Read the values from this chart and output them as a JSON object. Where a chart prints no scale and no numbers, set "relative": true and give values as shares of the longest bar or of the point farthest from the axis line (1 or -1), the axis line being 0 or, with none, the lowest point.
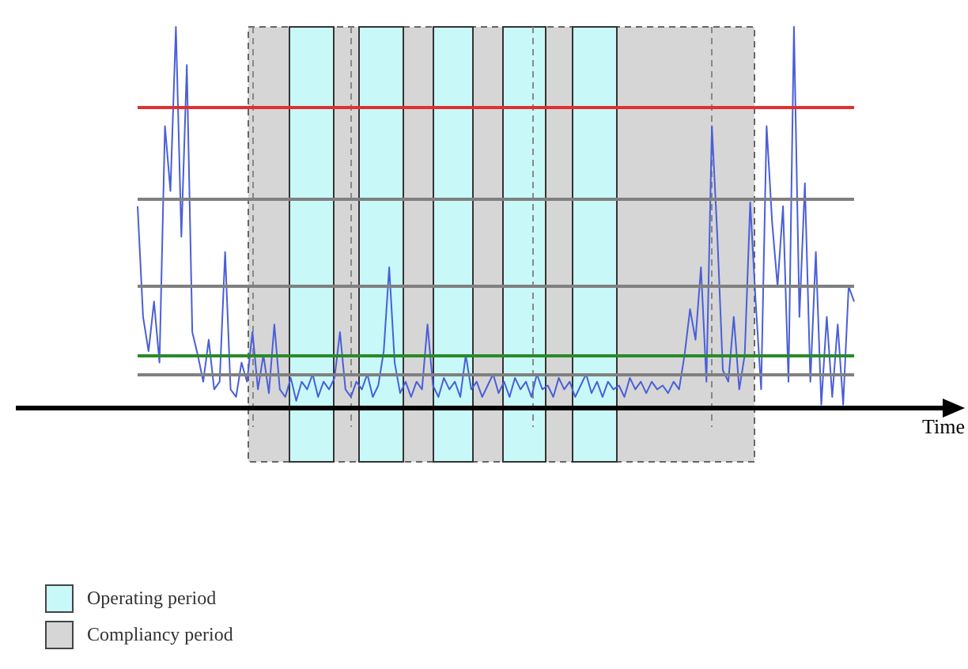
{
  "chart_data": {
    "type": "line",
    "relative": true,
    "xlabel": "Time",
    "marker": "none",
    "line_style": "solid",
    "annotations": [
      "Operating period",
      "Compliancy period"
    ],
    "categories": [
      null,
      null,
      null,
      null,
      null,
      null,
      null,
      null,
      null,
      null,
      null,
      null,
      null,
      null,
      null,
      null,
      null,
      null,
      null,
      null,
      null,
      null,
      null,
      null,
      null,
      null,
      null,
      null,
      null,
      null,
      null,
      null,
      null,
      null,
      null,
      null,
      null,
      null,
      null,
      null,
      null,
      null,
      null,
      null,
      null,
      null,
      null,
      null,
      null,
      null,
      null,
      null,
      null,
      null,
      null,
      null,
      null,
      null,
      null,
      null,
      null,
      null,
      null,
      null,
      null,
      null,
      null,
      null,
      null,
      null,
      null,
      null,
      null,
      null,
      null,
      null,
      null,
      null,
      null,
      null,
      null,
      null,
      null,
      null,
      null,
      null,
      null,
      null,
      null,
      null,
      null,
      null,
      null,
      null,
      null,
      null,
      null,
      null,
      null,
      null,
      null,
      null,
      null,
      null,
      null,
      null,
      null,
      null,
      null,
      null,
      null,
      null,
      null,
      null,
      null,
      null,
      null,
      null,
      null,
      null,
      null,
      null,
      null,
      null,
      null,
      null,
      null,
      null,
      null,
      null,
      null,
      null
    ],
    "series": [
      {
        "color": "#4a5fd8",
        "values": [
          0.53,
          0.24,
          0.15,
          0.28,
          0.12,
          0.74,
          0.57,
          1.0,
          0.45,
          0.9,
          0.2,
          0.14,
          0.07,
          0.18,
          0.05,
          0.07,
          0.41,
          0.05,
          0.03,
          0.12,
          0.07,
          0.2,
          0.05,
          0.14,
          0.04,
          0.22,
          0.05,
          0.03,
          0.08,
          0.02,
          0.07,
          0.05,
          0.09,
          0.03,
          0.07,
          0.05,
          0.08,
          0.2,
          0.05,
          0.03,
          0.07,
          0.05,
          0.09,
          0.03,
          0.06,
          0.15,
          0.37,
          0.12,
          0.04,
          0.07,
          0.03,
          0.07,
          0.05,
          0.22,
          0.06,
          0.03,
          0.08,
          0.05,
          0.07,
          0.03,
          0.14,
          0.05,
          0.07,
          0.03,
          0.06,
          0.09,
          0.04,
          0.07,
          0.03,
          0.08,
          0.05,
          0.07,
          0.03,
          0.09,
          0.05,
          0.06,
          0.03,
          0.08,
          0.05,
          0.07,
          0.03,
          0.06,
          0.09,
          0.04,
          0.07,
          0.03,
          0.07,
          0.05,
          0.06,
          0.03,
          0.08,
          0.05,
          0.07,
          0.04,
          0.07,
          0.05,
          0.06,
          0.04,
          0.07,
          0.05,
          0.14,
          0.26,
          0.18,
          0.37,
          0.07,
          0.74,
          0.45,
          0.1,
          0.07,
          0.24,
          0.05,
          0.14,
          0.54,
          0.28,
          0.05,
          0.74,
          0.49,
          0.32,
          0.53,
          0.07,
          1.0,
          0.24,
          0.59,
          0.07,
          0.41,
          0.01,
          0.24,
          0.03,
          0.22,
          0.01,
          0.32,
          0.28
        ]
      }
    ],
    "ref_lines": [
      {
        "axis": "y",
        "value": 0.79,
        "color": "#e03030"
      },
      {
        "axis": "y",
        "value": 0.55,
        "color": "#808080"
      },
      {
        "axis": "y",
        "value": 0.32,
        "color": "#808080"
      },
      {
        "axis": "y",
        "value": 0.14,
        "color": "#2a8a2a"
      },
      {
        "axis": "y",
        "value": 0.09,
        "color": "#808080"
      }
    ]
  }
}
